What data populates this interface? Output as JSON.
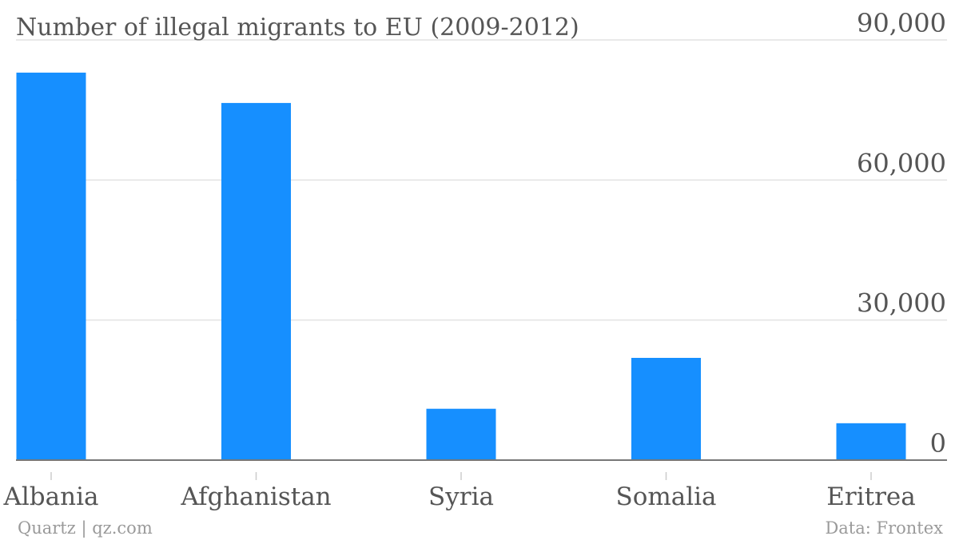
{
  "chart_data": {
    "type": "bar",
    "title": "Number of illegal migrants to EU (2009-2012)",
    "categories": [
      "Albania",
      "Afghanistan",
      "Syria",
      "Somalia",
      "Eritrea"
    ],
    "values": [
      83000,
      76500,
      11000,
      21900,
      7900
    ],
    "ylim": [
      0,
      90000
    ],
    "y_ticks": [
      {
        "value": 0,
        "label": "0"
      },
      {
        "value": 30000,
        "label": "30,000"
      },
      {
        "value": 60000,
        "label": "60,000"
      },
      {
        "value": 90000,
        "label": "90,000"
      }
    ],
    "y_axis_side": "right",
    "grid": true,
    "bar_color": "#168FFF"
  },
  "footer": {
    "source_left": "Quartz | qz.com",
    "source_right": "Data: Frontex"
  }
}
